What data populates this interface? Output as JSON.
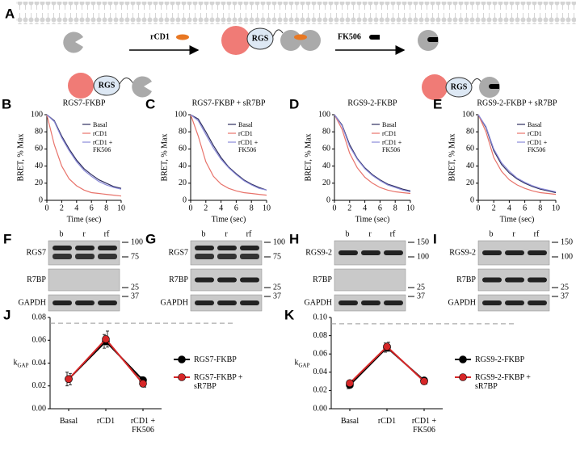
{
  "diagram": {
    "letter": "A",
    "add_label": "rCD1",
    "drug_label": "FK506",
    "protein_labels": [
      "RGS",
      "RGS",
      "RGS"
    ]
  },
  "chart_data": [
    {
      "type": "line",
      "letter": "B",
      "title": "RGS7-FKBP",
      "xlabel": "Time (sec)",
      "ylabel": "BRET, % Max",
      "x": [
        0,
        1,
        2,
        3,
        4,
        5,
        6,
        7,
        8,
        9,
        10
      ],
      "xlim": [
        0,
        10
      ],
      "xticks": [
        0,
        2,
        4,
        6,
        8,
        10
      ],
      "ylim": [
        0,
        100
      ],
      "yticks": [
        0,
        20,
        40,
        60,
        80,
        100
      ],
      "series": [
        {
          "name": "Basal",
          "color": "#2f2f5f",
          "values": [
            100,
            93,
            75,
            60,
            47,
            37,
            30,
            24,
            20,
            16,
            14
          ]
        },
        {
          "name": "rCD1",
          "color": "#e8736b",
          "values": [
            100,
            65,
            40,
            25,
            17,
            12,
            9,
            8,
            7,
            6,
            5
          ]
        },
        {
          "name": "rCD1 + FK506",
          "color": "#8a8ad8",
          "values": [
            100,
            92,
            73,
            58,
            45,
            35,
            28,
            22,
            18,
            15,
            13
          ]
        }
      ]
    },
    {
      "type": "line",
      "letter": "C",
      "title": "RGS7-FKBP + sR7BP",
      "xlabel": "Time (sec)",
      "ylabel": "BRET, % Max",
      "x": [
        0,
        1,
        2,
        3,
        4,
        5,
        6,
        7,
        8,
        9,
        10
      ],
      "xlim": [
        0,
        10
      ],
      "xticks": [
        0,
        2,
        4,
        6,
        8,
        10
      ],
      "ylim": [
        0,
        100
      ],
      "yticks": [
        0,
        20,
        40,
        60,
        80,
        100
      ],
      "series": [
        {
          "name": "Basal",
          "color": "#2f2f5f",
          "values": [
            100,
            95,
            80,
            64,
            50,
            39,
            31,
            24,
            19,
            15,
            12
          ]
        },
        {
          "name": "rCD1",
          "color": "#e8736b",
          "values": [
            100,
            75,
            45,
            28,
            19,
            14,
            11,
            9,
            8,
            7,
            6
          ]
        },
        {
          "name": "rCD1 + FK506",
          "color": "#8a8ad8",
          "values": [
            100,
            93,
            77,
            61,
            48,
            38,
            30,
            23,
            18,
            14,
            12
          ]
        }
      ]
    },
    {
      "type": "line",
      "letter": "D",
      "title": "RGS9-2-FKBP",
      "xlabel": "Time (sec)",
      "ylabel": "BRET, % Max",
      "x": [
        0,
        1,
        2,
        3,
        4,
        5,
        6,
        7,
        8,
        9,
        10
      ],
      "xlim": [
        0,
        10
      ],
      "xticks": [
        0,
        2,
        4,
        6,
        8,
        10
      ],
      "ylim": [
        0,
        100
      ],
      "yticks": [
        0,
        20,
        40,
        60,
        80,
        100
      ],
      "series": [
        {
          "name": "Basal",
          "color": "#2f2f5f",
          "values": [
            100,
            88,
            65,
            49,
            38,
            30,
            24,
            19,
            16,
            13,
            11
          ]
        },
        {
          "name": "rCD1",
          "color": "#e8736b",
          "values": [
            100,
            83,
            55,
            38,
            27,
            20,
            15,
            12,
            10,
            9,
            8
          ]
        },
        {
          "name": "rCD1 + FK506",
          "color": "#8a8ad8",
          "values": [
            100,
            87,
            63,
            48,
            37,
            29,
            23,
            18,
            15,
            12,
            10
          ]
        }
      ]
    },
    {
      "type": "line",
      "letter": "E",
      "title": "RGS9-2-FKBP + sR7BP",
      "xlabel": "Time (sec)",
      "ylabel": "BRET, % Max",
      "x": [
        0,
        1,
        2,
        3,
        4,
        5,
        6,
        7,
        8,
        9,
        10
      ],
      "xlim": [
        0,
        10
      ],
      "xticks": [
        0,
        2,
        4,
        6,
        8,
        10
      ],
      "ylim": [
        0,
        100
      ],
      "yticks": [
        0,
        20,
        40,
        60,
        80,
        100
      ],
      "series": [
        {
          "name": "Basal",
          "color": "#2f2f5f",
          "values": [
            100,
            85,
            58,
            42,
            32,
            25,
            20,
            16,
            13,
            11,
            9
          ]
        },
        {
          "name": "rCD1",
          "color": "#e8736b",
          "values": [
            100,
            80,
            50,
            34,
            24,
            18,
            14,
            11,
            9,
            8,
            7
          ]
        },
        {
          "name": "rCD1 + FK506",
          "color": "#8a8ad8",
          "values": [
            100,
            86,
            60,
            44,
            34,
            26,
            21,
            17,
            14,
            12,
            10
          ]
        }
      ]
    },
    {
      "type": "errorline",
      "letter": "J",
      "ylabel": "k",
      "ylabel_subscript": "GAP",
      "categories": [
        "Basal",
        "rCD1",
        "rCD1 + FK506"
      ],
      "ylim": [
        0,
        0.08
      ],
      "yticks": [
        {
          "value": 0,
          "label": "0.00"
        },
        0.02,
        0.04,
        0.06,
        0.08
      ],
      "reference_line": 0.075,
      "series": [
        {
          "name": "RGS7-FKBP",
          "color": "#000000",
          "values": [
            0.026,
            0.059,
            0.025
          ],
          "errors": [
            0.006,
            0.006,
            0.003
          ]
        },
        {
          "name": "RGS7-FKBP + sR7BP",
          "color": "#d62728",
          "values": [
            0.026,
            0.061,
            0.022
          ],
          "errors": [
            0.005,
            0.007,
            0.003
          ]
        }
      ]
    },
    {
      "type": "errorline",
      "letter": "K",
      "ylabel": "k",
      "ylabel_subscript": "GAP",
      "categories": [
        "Basal",
        "rCD1",
        "rCD1 + FK506"
      ],
      "ylim": [
        0,
        0.1
      ],
      "yticks": [
        {
          "value": 0,
          "label": "0.00"
        },
        0.02,
        0.04,
        0.06,
        0.08,
        {
          "value": 0.1,
          "label": "0.10"
        }
      ],
      "reference_line": 0.093,
      "series": [
        {
          "name": "RGS9-2-FKBP",
          "color": "#000000",
          "values": [
            0.026,
            0.067,
            0.031
          ],
          "errors": [
            0.004,
            0.005,
            0.002
          ]
        },
        {
          "name": "RGS9-2-FKBP + sR7BP",
          "color": "#d62728",
          "values": [
            0.028,
            0.068,
            0.03
          ],
          "errors": [
            0.003,
            0.005,
            0.003
          ]
        }
      ]
    }
  ],
  "blots": [
    {
      "letter": "F",
      "lanes": [
        "b",
        "r",
        "rf"
      ],
      "rows": [
        "RGS7",
        "R7BP",
        "GAPDH"
      ],
      "markers": [
        100,
        75,
        25,
        37
      ]
    },
    {
      "letter": "G",
      "lanes": [
        "b",
        "r",
        "rf"
      ],
      "rows": [
        "RGS7",
        "R7BP",
        "GAPDH"
      ],
      "markers": [
        100,
        75,
        25,
        37
      ]
    },
    {
      "letter": "H",
      "lanes": [
        "b",
        "r",
        "rf"
      ],
      "rows": [
        "RGS9-2",
        "R7BP",
        "GAPDH"
      ],
      "markers": [
        150,
        100,
        25,
        37
      ]
    },
    {
      "letter": "I",
      "lanes": [
        "b",
        "r",
        "rf"
      ],
      "rows": [
        "RGS9-2",
        "R7BP",
        "GAPDH"
      ],
      "markers": [
        150,
        100,
        25,
        37
      ]
    }
  ]
}
